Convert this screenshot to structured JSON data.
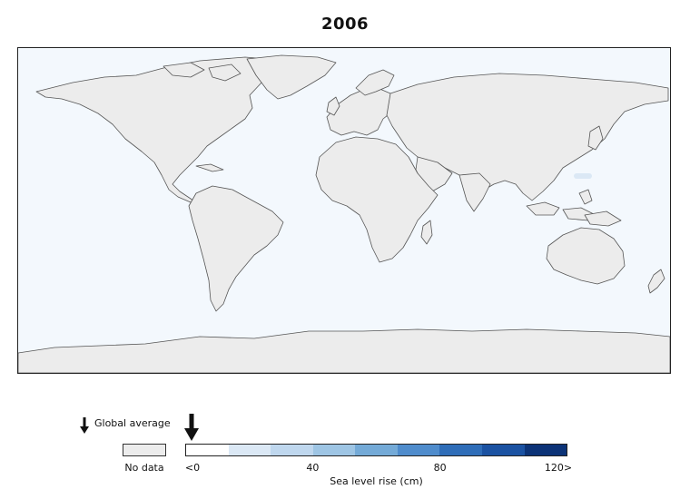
{
  "title": "2006",
  "map": {
    "ocean_color": "#f3f8fd",
    "land_color": "#ececec",
    "coastline_color": "#555555",
    "highlight_patch_color": "#dbe8f5"
  },
  "legend": {
    "global_average_label": "Global average",
    "global_average_value_cm": 0,
    "no_data_label": "No data",
    "axis_title": "Sea level rise (cm)",
    "ticks": [
      {
        "label": "<0",
        "value": 0
      },
      {
        "label": "40",
        "value": 40
      },
      {
        "label": "80",
        "value": 80
      },
      {
        "label": "120>",
        "value": 120
      }
    ],
    "range": [
      0,
      120
    ],
    "colors": [
      "#ffffff",
      "#dbe8f5",
      "#bfd7ee",
      "#9ec5e4",
      "#74aad7",
      "#4f8ccc",
      "#2f6db8",
      "#1b52a2",
      "#0c3377"
    ]
  }
}
